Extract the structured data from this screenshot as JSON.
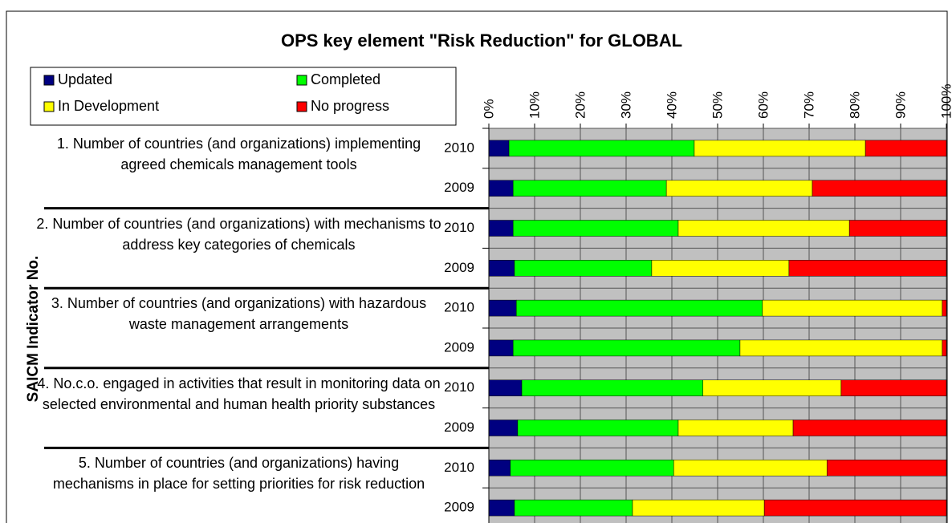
{
  "chart_data": {
    "type": "stacked_barh",
    "title": "OPS key element \"Risk Reduction\" for GLOBAL",
    "y_axis_label": "SAICM Indicator No.",
    "groups": [
      "1. Number of countries (and organizations) implementing agreed chemicals management tools",
      "2. Number of countries (and organizations) with mechanisms to address key categories of chemicals",
      "3. Number of countries (and organizations) with hazardous waste management arrangements",
      "4. No.c.o. engaged in activities that result in monitoring data on selected environmental and human health priority substances",
      "5. Number of countries (and organizations) having mechanisms in place for setting priorities for risk reduction"
    ],
    "categories": [
      "2010",
      "2009",
      "2010",
      "2009",
      "2010",
      "2009",
      "2010",
      "2009",
      "2010",
      "2009"
    ],
    "series": [
      {
        "name": "Updated",
        "color": "#000080",
        "values": [
          4.4,
          5.3,
          5.3,
          5.6,
          6.0,
          5.3,
          7.2,
          6.3,
          4.7,
          5.6
        ]
      },
      {
        "name": "Completed",
        "color": "#00ff00",
        "values": [
          40.5,
          33.5,
          36.1,
          30.0,
          53.8,
          49.6,
          39.6,
          35.1,
          35.7,
          25.8
        ]
      },
      {
        "name": "In Development",
        "color": "#ffff00",
        "values": [
          37.4,
          31.9,
          37.4,
          30.0,
          39.3,
          44.2,
          30.2,
          25.1,
          33.5,
          28.8
        ]
      },
      {
        "name": "No progress",
        "color": "#ff0000",
        "values": [
          17.7,
          29.3,
          21.2,
          34.4,
          0.9,
          0.9,
          23.0,
          33.5,
          26.1,
          39.8
        ]
      }
    ],
    "xlim": [
      0,
      100
    ],
    "xticks": [
      {
        "value": 0,
        "label": "0%"
      },
      {
        "value": 10,
        "label": "10%"
      },
      {
        "value": 20,
        "label": "20%"
      },
      {
        "value": 30,
        "label": "30%"
      },
      {
        "value": 40,
        "label": "40%"
      },
      {
        "value": 50,
        "label": "50%"
      },
      {
        "value": 60,
        "label": "60%"
      },
      {
        "value": 70,
        "label": "70%"
      },
      {
        "value": 80,
        "label": "80%"
      },
      {
        "value": 90,
        "label": "90%"
      },
      {
        "value": 100,
        "label": "100%"
      }
    ],
    "grid": true
  }
}
